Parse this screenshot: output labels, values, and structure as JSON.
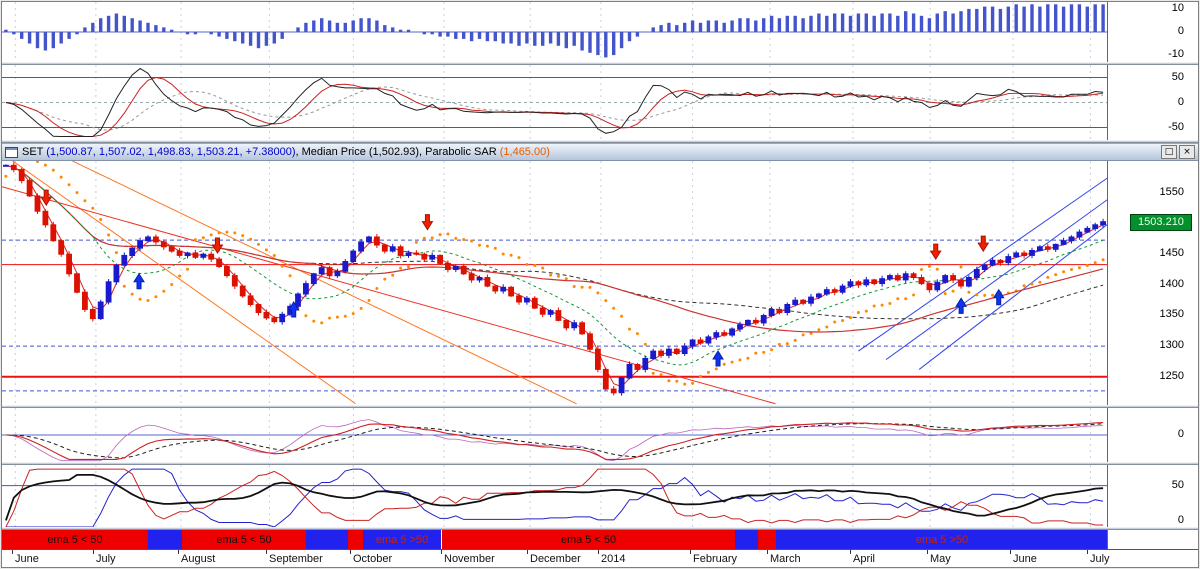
{
  "window": {
    "title_parts": [
      {
        "text": "SET ",
        "color": "#000000"
      },
      {
        "text": "(1,500.87, 1,507.02, 1,498.83, 1,503.21, +7.38000)",
        "color": "#0000cc"
      },
      {
        "text": ", Median Price (1,502.93), Parabolic SAR ",
        "color": "#000000"
      },
      {
        "text": "(1,465.00)",
        "color": "#e65c00"
      }
    ],
    "buttons": {
      "restore": "□",
      "close": "×"
    }
  },
  "colors": {
    "candle_up": "#1a1acc",
    "candle_down": "#dd1100",
    "sar": "#ff8800",
    "ribbon_red": "#ee0000",
    "ribbon_blue": "#2222ee",
    "ribbon_label_on_red": "#111111",
    "ribbon_label_on_blue": "#cc2200"
  },
  "chart_data": [
    {
      "id": "momentum-histogram",
      "type": "bar",
      "ylim": [
        -13,
        13
      ],
      "yticks": [
        10,
        0,
        -10
      ],
      "bar_color": "#4455cc",
      "values": [
        1,
        -1,
        -3,
        -5,
        -7,
        -8,
        -7,
        -5,
        -3,
        -1,
        2,
        4,
        6,
        7,
        8,
        7,
        6,
        5,
        4,
        3,
        2,
        1,
        0,
        -1,
        -1,
        0,
        -1,
        -2,
        -3,
        -4,
        -5,
        -6,
        -7,
        -6,
        -5,
        -3,
        0,
        2,
        4,
        5,
        6,
        5,
        4,
        4,
        5,
        6,
        6,
        5,
        3,
        2,
        1,
        1,
        0,
        -1,
        -1,
        -2,
        -2,
        -3,
        -3,
        -4,
        -3,
        -4,
        -4,
        -5,
        -5,
        -6,
        -5,
        -6,
        -6,
        -5,
        -6,
        -7,
        -6,
        -8,
        -9,
        -10,
        -11,
        -10,
        -7,
        -4,
        -2,
        0,
        2,
        3,
        4,
        3,
        4,
        5,
        4,
        5,
        5,
        4,
        5,
        6,
        6,
        5,
        6,
        7,
        6,
        7,
        7,
        6,
        7,
        8,
        7,
        8,
        8,
        7,
        8,
        8,
        7,
        8,
        8,
        7,
        9,
        8,
        7,
        6,
        8,
        9,
        8,
        9,
        10,
        10,
        11,
        11,
        10,
        11,
        12,
        11,
        12,
        11,
        12,
        12,
        11,
        12,
        12,
        11,
        12,
        12
      ]
    },
    {
      "id": "oscillator",
      "type": "line",
      "derived_from": "price closes (6-bar rate of change, 5-bar smooth)",
      "ylim": [
        -75,
        75
      ],
      "yticks": [
        50,
        0,
        -50
      ],
      "hlines": [
        50,
        -50
      ]
    },
    {
      "id": "price",
      "type": "candlestick",
      "ylim": [
        1204,
        1602
      ],
      "yticks": [
        1550,
        1450,
        1400,
        1350,
        1300,
        1250
      ],
      "last_price": "1503.210",
      "closes": [
        1595,
        1588,
        1570,
        1545,
        1520,
        1498,
        1472,
        1450,
        1418,
        1388,
        1360,
        1345,
        1372,
        1405,
        1432,
        1448,
        1460,
        1472,
        1478,
        1470,
        1462,
        1455,
        1448,
        1452,
        1445,
        1450,
        1442,
        1430,
        1415,
        1398,
        1382,
        1368,
        1355,
        1346,
        1340,
        1352,
        1365,
        1385,
        1402,
        1418,
        1428,
        1415,
        1422,
        1438,
        1455,
        1470,
        1478,
        1465,
        1455,
        1462,
        1448,
        1452,
        1450,
        1442,
        1448,
        1435,
        1425,
        1430,
        1418,
        1408,
        1412,
        1398,
        1390,
        1396,
        1382,
        1372,
        1378,
        1362,
        1352,
        1358,
        1342,
        1330,
        1338,
        1320,
        1295,
        1262,
        1230,
        1224,
        1248,
        1270,
        1262,
        1280,
        1292,
        1285,
        1295,
        1288,
        1300,
        1310,
        1305,
        1315,
        1322,
        1318,
        1328,
        1335,
        1342,
        1338,
        1350,
        1360,
        1355,
        1368,
        1375,
        1370,
        1380,
        1385,
        1392,
        1388,
        1398,
        1405,
        1400,
        1408,
        1402,
        1410,
        1415,
        1408,
        1418,
        1412,
        1402,
        1392,
        1404,
        1415,
        1408,
        1398,
        1412,
        1425,
        1432,
        1440,
        1436,
        1446,
        1452,
        1448,
        1456,
        1462,
        1458,
        1466,
        1472,
        1478,
        1486,
        1492,
        1498,
        1503
      ],
      "hlines_red": [
        1250,
        1433
      ],
      "hlines_dashed_blue": [
        1473,
        1300,
        1227
      ],
      "trendlines": [
        {
          "x1": -0.02,
          "p1": 1640,
          "x2": 0.32,
          "p2": 1206,
          "color": "#ff7722"
        },
        {
          "x1": 0.02,
          "p1": 1640,
          "x2": 0.52,
          "p2": 1206,
          "color": "#ff7722"
        },
        {
          "x1": 0.0,
          "p1": 1560,
          "x2": 0.7,
          "p2": 1206,
          "color": "#ee3322"
        },
        {
          "x1": 0.775,
          "p1": 1292,
          "x2": 1.005,
          "p2": 1580,
          "color": "#3344ee"
        },
        {
          "x1": 0.8,
          "p1": 1278,
          "x2": 1.005,
          "p2": 1545,
          "color": "#3344ee"
        },
        {
          "x1": 0.83,
          "p1": 1262,
          "x2": 1.005,
          "p2": 1505,
          "color": "#3344ee"
        }
      ],
      "arrows_up": [
        {
          "x": 0.124,
          "p": 1418
        },
        {
          "x": 0.264,
          "p": 1372
        },
        {
          "x": 0.648,
          "p": 1292
        },
        {
          "x": 0.868,
          "p": 1378
        },
        {
          "x": 0.902,
          "p": 1392
        }
      ],
      "arrows_down": [
        {
          "x": 0.04,
          "p": 1530
        },
        {
          "x": 0.195,
          "p": 1452
        },
        {
          "x": 0.385,
          "p": 1490
        },
        {
          "x": 0.845,
          "p": 1442
        },
        {
          "x": 0.888,
          "p": 1455
        }
      ]
    },
    {
      "id": "macd",
      "type": "line",
      "derived_from": "price closes (fast EMA minus slow EMA with signal line)",
      "ylim": [
        -42,
        42
      ],
      "yticks": [
        0
      ]
    },
    {
      "id": "trend-strength",
      "type": "line",
      "derived_from": "price closes (directional movement lines)",
      "ylim": [
        0,
        75
      ],
      "yticks": [
        50,
        0
      ],
      "hlines": [
        50
      ]
    },
    {
      "id": "ema-ribbon",
      "type": "ribbon",
      "segments": [
        {
          "from": 0.0,
          "to": 0.132,
          "state": "red",
          "label": "ema 5 < 50"
        },
        {
          "from": 0.132,
          "to": 0.163,
          "state": "blue",
          "label": ""
        },
        {
          "from": 0.163,
          "to": 0.275,
          "state": "red",
          "label": "ema 5 < 50"
        },
        {
          "from": 0.275,
          "to": 0.313,
          "state": "blue",
          "label": ""
        },
        {
          "from": 0.313,
          "to": 0.327,
          "state": "red",
          "label": ""
        },
        {
          "from": 0.327,
          "to": 0.398,
          "state": "blue",
          "label": "ema 5 >50"
        },
        {
          "from": 0.398,
          "to": 0.663,
          "state": "red",
          "label": "ema 5 < 50"
        },
        {
          "from": 0.663,
          "to": 0.684,
          "state": "blue",
          "label": ""
        },
        {
          "from": 0.684,
          "to": 0.7,
          "state": "red",
          "label": ""
        },
        {
          "from": 0.7,
          "to": 1.0,
          "state": "blue",
          "label": "ema 5 >50"
        }
      ]
    },
    {
      "id": "time-axis",
      "type": "axis",
      "months": [
        {
          "label": "June",
          "x": 0.012
        },
        {
          "label": "July",
          "x": 0.085
        },
        {
          "label": "August",
          "x": 0.162
        },
        {
          "label": "September",
          "x": 0.242
        },
        {
          "label": "October",
          "x": 0.318
        },
        {
          "label": "November",
          "x": 0.4
        },
        {
          "label": "December",
          "x": 0.478
        },
        {
          "label": "2014",
          "x": 0.542
        },
        {
          "label": "February",
          "x": 0.625
        },
        {
          "label": "March",
          "x": 0.695
        },
        {
          "label": "April",
          "x": 0.77
        },
        {
          "label": "May",
          "x": 0.84
        },
        {
          "label": "June",
          "x": 0.915
        },
        {
          "label": "July",
          "x": 0.985
        }
      ]
    }
  ]
}
